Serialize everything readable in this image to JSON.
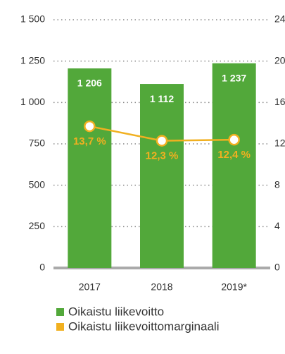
{
  "chart_data": {
    "type": "bar",
    "categories": [
      "2017",
      "2018",
      "2019*"
    ],
    "series": [
      {
        "name": "Oikaistu liikevoitto",
        "color": "#52a83a",
        "type": "bar",
        "values": [
          1206,
          1112,
          1237
        ],
        "value_labels": [
          "1 206",
          "1 112",
          "1 237"
        ]
      },
      {
        "name": "Oikaistu liikevoittomarginaali",
        "color": "#f1b020",
        "type": "line",
        "axis": "y2",
        "values": [
          13.7,
          12.3,
          12.4
        ],
        "value_labels": [
          "13,7 %",
          "12,3 %",
          "12,4 %"
        ]
      }
    ],
    "ylim": [
      0,
      1500
    ],
    "yticks": [
      0,
      250,
      500,
      750,
      {
        "value": 1000,
        "label": "1 000"
      },
      {
        "value": 1250,
        "label": "1 250"
      },
      {
        "value": 1500,
        "label": "1 500"
      }
    ],
    "y2lim": [
      0,
      24
    ],
    "y2ticks": [
      0,
      4,
      8,
      12,
      16,
      20,
      24
    ],
    "grid": true
  }
}
